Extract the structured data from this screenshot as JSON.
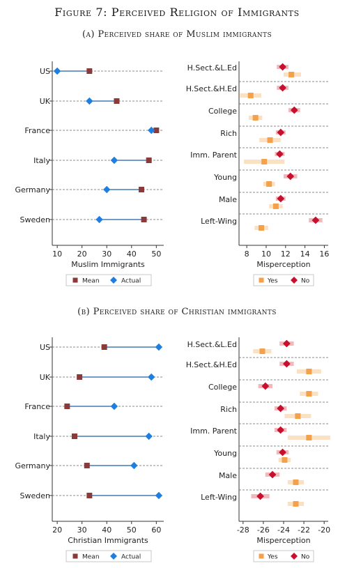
{
  "figure_title": "Figure 7: Perceived Religion of Immigrants",
  "colors": {
    "mean": "#8b3a3a",
    "actual": "#1e7fe0",
    "yes": "#f5a04a",
    "yes_ci": "#fbe0c2",
    "no": "#c8102e",
    "no_ci": "#f3b8bb",
    "line": "#1f5fae",
    "dash": "#666666"
  },
  "chart_data": [
    {
      "panel_title": "(a) Perceived share of Muslim immigrants",
      "type": "dot",
      "categories": [
        "US",
        "UK",
        "France",
        "Italy",
        "Germany",
        "Sweden"
      ],
      "series": [
        {
          "name": "Mean",
          "values": [
            23,
            34,
            50,
            47,
            44,
            45
          ]
        },
        {
          "name": "Actual",
          "values": [
            10,
            23,
            48,
            33,
            30,
            27
          ]
        }
      ],
      "xlabel": "Muslim Immigrants",
      "ylabel": "",
      "xlim": [
        8,
        53
      ],
      "xticks": [
        10,
        20,
        30,
        40,
        50
      ],
      "legend": [
        "Mean",
        "Actual"
      ],
      "legend_position": "bottom"
    },
    {
      "panel_title": "(a) Perceived share of Muslim immigrants",
      "type": "scatter",
      "categories": [
        "H.Sect.&L.Ed",
        "H.Sect.&H.Ed",
        "College",
        "Rich",
        "Imm. Parent",
        "Young",
        "Male",
        "Left-Wing"
      ],
      "series": [
        {
          "name": "No",
          "values": [
            11.7,
            11.7,
            12.9,
            11.5,
            11.4,
            12.5,
            11.5,
            15.1
          ],
          "ci": [
            [
              11.1,
              12.3
            ],
            [
              11.1,
              12.3
            ],
            [
              12.3,
              13.5
            ],
            [
              11.0,
              12.0
            ],
            [
              10.9,
              11.9
            ],
            [
              11.8,
              13.2
            ],
            [
              11.0,
              12.0
            ],
            [
              14.4,
              15.8
            ]
          ]
        },
        {
          "name": "Yes",
          "values": [
            12.6,
            8.4,
            8.9,
            10.4,
            9.8,
            10.3,
            11.0,
            9.5
          ],
          "ci": [
            [
              11.8,
              13.6
            ],
            [
              7.3,
              9.5
            ],
            [
              8.2,
              9.6
            ],
            [
              9.3,
              11.5
            ],
            [
              7.7,
              11.9
            ],
            [
              9.7,
              10.9
            ],
            [
              10.3,
              11.7
            ],
            [
              8.8,
              10.2
            ]
          ]
        }
      ],
      "xlabel": "Misperception",
      "ylabel": "",
      "xlim": [
        7.2,
        16.4
      ],
      "xticks": [
        8,
        10,
        12,
        14,
        16
      ],
      "legend": [
        "Yes",
        "No"
      ],
      "legend_position": "bottom"
    },
    {
      "panel_title": "(b) Perceived share of Christian immigrants",
      "type": "dot",
      "categories": [
        "US",
        "UK",
        "France",
        "Italy",
        "Germany",
        "Sweden"
      ],
      "series": [
        {
          "name": "Mean",
          "values": [
            39,
            29,
            24,
            27,
            32,
            33
          ]
        },
        {
          "name": "Actual",
          "values": [
            61,
            58,
            43,
            57,
            51,
            61
          ]
        }
      ],
      "xlabel": "Christian Immigrants",
      "ylabel": "",
      "xlim": [
        18,
        63
      ],
      "xticks": [
        20,
        30,
        40,
        50,
        60
      ],
      "legend": [
        "Mean",
        "Actual"
      ],
      "legend_position": "bottom"
    },
    {
      "panel_title": "(b) Perceived share of Christian immigrants",
      "type": "scatter",
      "categories": [
        "H.Sect.&L.Ed",
        "H.Sect.&H.Ed",
        "College",
        "Rich",
        "Imm. Parent",
        "Young",
        "Male",
        "Left-Wing"
      ],
      "series": [
        {
          "name": "No",
          "values": [
            -23.7,
            -23.7,
            -25.8,
            -24.3,
            -24.3,
            -24.1,
            -25.1,
            -26.3
          ],
          "ci": [
            [
              -24.4,
              -23.0
            ],
            [
              -24.4,
              -23.0
            ],
            [
              -26.5,
              -25.1
            ],
            [
              -24.9,
              -23.7
            ],
            [
              -24.9,
              -23.7
            ],
            [
              -24.7,
              -23.5
            ],
            [
              -25.8,
              -24.4
            ],
            [
              -27.2,
              -25.4
            ]
          ]
        },
        {
          "name": "Yes",
          "values": [
            -26.1,
            -21.5,
            -21.5,
            -22.6,
            -21.5,
            -23.9,
            -22.8,
            -22.8
          ],
          "ci": [
            [
              -27.0,
              -25.2
            ],
            [
              -22.7,
              -20.3
            ],
            [
              -22.4,
              -20.6
            ],
            [
              -23.9,
              -21.3
            ],
            [
              -23.6,
              -19.4
            ],
            [
              -24.5,
              -23.3
            ],
            [
              -23.6,
              -22.0
            ],
            [
              -23.6,
              -22.0
            ]
          ]
        }
      ],
      "xlabel": "Misperception",
      "ylabel": "",
      "xlim": [
        -28.4,
        -19.6
      ],
      "xticks": [
        -28,
        -26,
        -24,
        -22,
        -20
      ],
      "legend": [
        "Yes",
        "No"
      ],
      "legend_position": "bottom"
    }
  ]
}
